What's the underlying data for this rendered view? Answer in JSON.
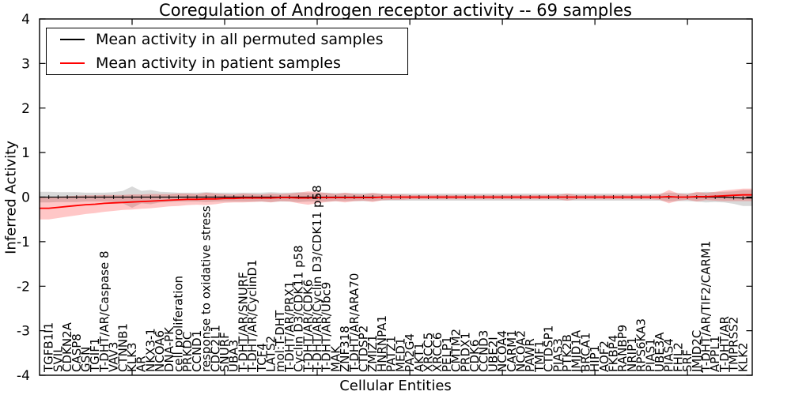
{
  "chart_data": {
    "type": "line",
    "title": "Coregulation of Androgen receptor activity -- 69 samples",
    "xlabel": "Cellular Entities",
    "ylabel": "Inferred Activity",
    "ylim": [
      -4,
      4
    ],
    "yticks": [
      4,
      3,
      2,
      1,
      0,
      -1,
      -2,
      -3,
      -4
    ],
    "xticks": [
      10,
      20,
      30,
      40,
      50,
      60,
      70
    ],
    "grid": false,
    "legend_position": "upper left",
    "background": "#ffffff",
    "axis_color": "#000000",
    "categories": [
      "TGFB1I1",
      "SVIL",
      "CDKN2A",
      "CASP8",
      "GSN",
      "TGIF1",
      "T-DHT/AR/Caspase 8",
      "VAV3",
      "CTNNB1",
      "KLK3",
      "AR",
      "NKX3-1",
      "NCOA6",
      "DNA-PK",
      "cell proliferation",
      "PRKDC",
      "CCND1",
      "response to oxidative stress",
      "CDC2L1",
      "SNURF",
      "UBA3",
      "T-DHT/AR/SNURF",
      "T-DHT/AR/CyclinD1",
      "TCF4",
      "LATS2",
      "mol:T-DHT",
      "T-DHT/AR/PRX1",
      "Cyclin D3/CDK11 p58",
      "T-DHT/AR/CDK6",
      "T-DHT/AR/Cyclin D3/CDK11 p58",
      "T-DHT/AR/Ubc9",
      "MAK",
      "ZNF318",
      "T-DHT/AR/ARA70",
      "CTDSP2",
      "ZMIZ1",
      "HNRNPA1",
      "PATZ1",
      "MED1",
      "PA2G4",
      "AKT1",
      "XRCC5",
      "XRCC6",
      "PELP1",
      "CMTM2",
      "PRDX1",
      "CDK6",
      "CCND3",
      "UBE2I",
      "NCOA4",
      "CARM1",
      "NCOA2",
      "PAWR",
      "TMF1",
      "CTDSP1",
      "PIAS3",
      "PTK2B",
      "JMJD1A",
      "BRCA1",
      "HIP1",
      "AOF2",
      "FKBP4",
      "RANBP9",
      "NRIP1",
      "RPS6KA3",
      "PIAS1",
      "UBE3A",
      "PIAS4",
      "FHL2",
      "SRF",
      "JMJD2C",
      "T-DHT/AR/TIF2/CARM1",
      "APPL1",
      "T-DHT/AR",
      "TMPRSS2",
      "KLK2"
    ],
    "series": [
      {
        "name": "Mean activity in all permuted samples",
        "color": "#000000",
        "band_color": "#aaaaaa",
        "band_opacity": 0.45,
        "values": [
          0,
          0,
          0,
          0,
          0,
          0,
          0,
          0,
          0,
          0,
          0,
          0,
          0,
          0,
          0,
          0,
          0,
          0,
          0,
          0,
          0,
          0,
          0,
          0,
          0,
          0,
          0,
          0,
          0,
          0,
          0,
          0,
          0,
          0,
          0,
          0,
          0,
          0,
          0,
          0,
          0,
          0,
          0,
          0,
          0,
          0,
          0,
          0,
          0,
          0,
          0,
          0,
          0,
          0,
          0,
          0,
          0,
          0,
          0,
          0,
          0,
          0,
          0,
          0,
          0,
          0,
          0,
          0,
          0,
          0,
          0,
          0,
          0,
          0,
          -0.01,
          -0.02
        ],
        "band_halfwidth": [
          0.12,
          0.11,
          0.11,
          0.11,
          0.1,
          0.1,
          0.1,
          0.11,
          0.14,
          0.24,
          0.14,
          0.16,
          0.12,
          0.11,
          0.1,
          0.1,
          0.1,
          0.11,
          0.1,
          0.1,
          0.1,
          0.1,
          0.1,
          0.1,
          0.11,
          0.1,
          0.1,
          0.11,
          0.1,
          0.1,
          0.1,
          0.09,
          0.09,
          0.09,
          0.09,
          0.09,
          0.08,
          0.08,
          0.08,
          0.08,
          0.08,
          0.08,
          0.08,
          0.08,
          0.08,
          0.08,
          0.08,
          0.08,
          0.08,
          0.08,
          0.08,
          0.08,
          0.08,
          0.08,
          0.08,
          0.08,
          0.08,
          0.08,
          0.08,
          0.08,
          0.08,
          0.08,
          0.08,
          0.08,
          0.08,
          0.08,
          0.08,
          0.1,
          0.09,
          0.09,
          0.1,
          0.12,
          0.11,
          0.12,
          0.14,
          0.18
        ]
      },
      {
        "name": "Mean activity in patient samples",
        "color": "#ff0000",
        "band_color": "#ff0000",
        "band_opacity": 0.22,
        "values": [
          -0.25,
          -0.23,
          -0.21,
          -0.19,
          -0.17,
          -0.16,
          -0.14,
          -0.13,
          -0.12,
          -0.11,
          -0.1,
          -0.09,
          -0.08,
          -0.07,
          -0.06,
          -0.05,
          -0.05,
          -0.04,
          -0.04,
          -0.03,
          -0.03,
          -0.02,
          -0.02,
          -0.02,
          -0.02,
          -0.01,
          -0.01,
          -0.02,
          -0.02,
          -0.01,
          -0.01,
          -0.01,
          -0.01,
          -0.01,
          -0.01,
          -0.01,
          0,
          0,
          0,
          0,
          0,
          0,
          0,
          0,
          0,
          0,
          0,
          0,
          0,
          0,
          0,
          0,
          0,
          0,
          0,
          0,
          0,
          0,
          0,
          0,
          0,
          0,
          0,
          0,
          0,
          0,
          0,
          0.01,
          0,
          0,
          0.01,
          0.01,
          0.02,
          0.03,
          0.04,
          0.05
        ],
        "band_halfwidth": [
          0.25,
          0.24,
          0.23,
          0.22,
          0.21,
          0.2,
          0.19,
          0.18,
          0.17,
          0.17,
          0.16,
          0.16,
          0.15,
          0.14,
          0.14,
          0.13,
          0.12,
          0.14,
          0.12,
          0.1,
          0.09,
          0.1,
          0.09,
          0.08,
          0.1,
          0.08,
          0.09,
          0.12,
          0.15,
          0.13,
          0.1,
          0.08,
          0.11,
          0.08,
          0.07,
          0.1,
          0.07,
          0.06,
          0.06,
          0.05,
          0.05,
          0.05,
          0.05,
          0.05,
          0.05,
          0.05,
          0.05,
          0.05,
          0.05,
          0.05,
          0.05,
          0.05,
          0.05,
          0.05,
          0.05,
          0.05,
          0.08,
          0.05,
          0.05,
          0.05,
          0.05,
          0.05,
          0.05,
          0.05,
          0.05,
          0.05,
          0.06,
          0.15,
          0.08,
          0.06,
          0.11,
          0.08,
          0.1,
          0.12,
          0.13,
          0.14
        ]
      }
    ]
  }
}
